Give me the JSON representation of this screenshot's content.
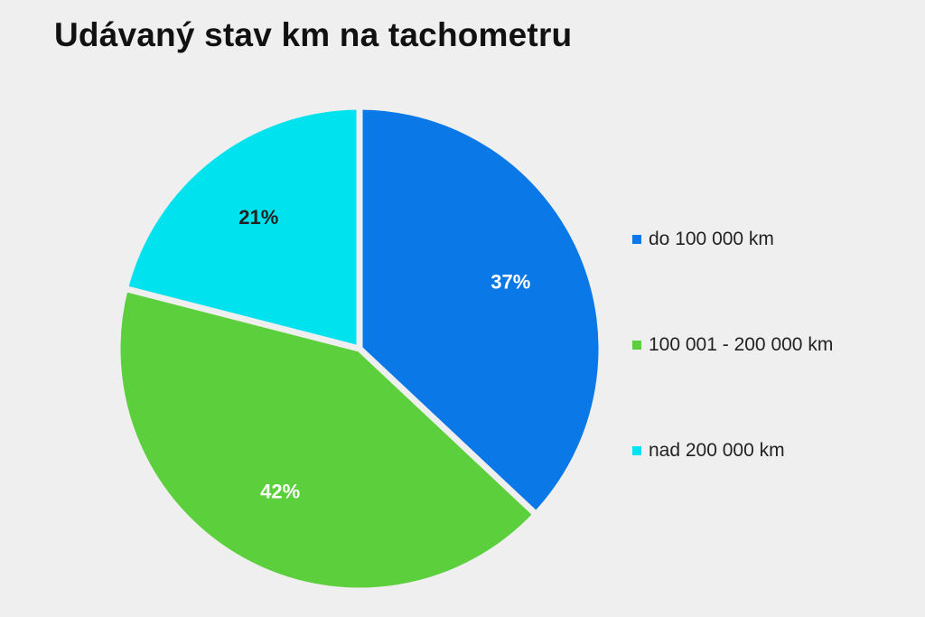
{
  "chart_data": {
    "type": "pie",
    "title": "Udávaný stav km na tachometru",
    "categories": [
      "do 100 000 km",
      "100 001 - 200 000 km",
      "nad 200 000 km"
    ],
    "values": [
      37,
      42,
      21
    ],
    "labels": [
      "37%",
      "42%",
      "21%"
    ],
    "colors": [
      "#0a78e6",
      "#5ccf3c",
      "#00e2ee"
    ],
    "label_colors": [
      "#ffffff",
      "#ffffff",
      "#222222"
    ],
    "legend_position": "right",
    "start_angle": "12 o'clock",
    "direction": "clockwise"
  }
}
